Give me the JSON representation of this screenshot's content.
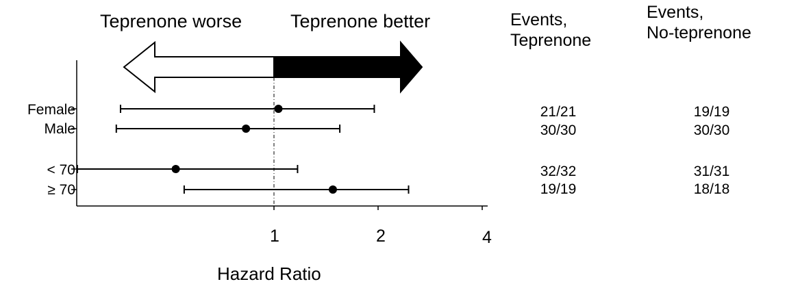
{
  "chart_data": {
    "type": "forest",
    "xlabel": "Hazard Ratio",
    "x_scale": "log",
    "xlim": [
      0.25,
      4
    ],
    "reference_line": 1,
    "x_ticks": [
      {
        "value": 1,
        "label": "1"
      },
      {
        "value": 2,
        "label": "2"
      },
      {
        "value": 4,
        "label": "4"
      }
    ],
    "direction_labels": {
      "left": "Teprenone worse",
      "right": "Teprenone better"
    },
    "columns": [
      "Events,\nTeprenone",
      "Events,\nNo-teprenone"
    ],
    "rows": [
      {
        "label": "Female",
        "hr": 1.03,
        "ci": [
          0.36,
          1.95
        ],
        "events_teprenone": "21/21",
        "events_no_teprenone": "19/19"
      },
      {
        "label": "Male",
        "hr": 0.83,
        "ci": [
          0.35,
          1.55
        ],
        "events_teprenone": "30/30",
        "events_no_teprenone": "30/30"
      },
      {
        "label": "< 70",
        "hr": 0.52,
        "ci": [
          0.27,
          1.17
        ],
        "events_teprenone": "32/32",
        "events_no_teprenone": "31/31"
      },
      {
        "label": "≥ 70",
        "hr": 1.48,
        "ci": [
          0.55,
          2.45
        ],
        "events_teprenone": "19/19",
        "events_no_teprenone": "18/18"
      }
    ]
  }
}
